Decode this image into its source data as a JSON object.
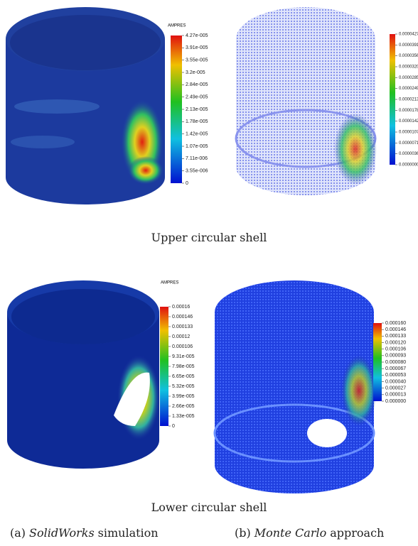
{
  "panels": [
    {
      "title": "AMPRES",
      "ticks": [
        "4.27e-005",
        "3.91e-005",
        "3.55e-005",
        "3.2e-005",
        "2.84e-005",
        "2.49e-005",
        "2.13e-005",
        "1.78e-005",
        "1.42e-005",
        "1.07e-005",
        "7.11e-006",
        "3.55e-006",
        "0"
      ]
    },
    {
      "ticks": [
        "0.0000427",
        "0.0000391",
        "0.0000356",
        "0.0000320",
        "0.0000285",
        "0.0000249",
        "0.0000213",
        "0.0000178",
        "0.0000142",
        "0.0000107",
        "0.0000071",
        "0.0000036",
        "0.0000000"
      ]
    },
    {
      "title": "AMPRES",
      "ticks": [
        "0.00016",
        "0.000146",
        "0.000133",
        "0.00012",
        "0.000106",
        "9.31e-005",
        "7.98e-005",
        "6.65e-005",
        "5.32e-005",
        "3.99e-005",
        "2.66e-005",
        "1.33e-005",
        "0"
      ]
    },
    {
      "ticks": [
        "0.000160",
        "0.000146",
        "0.000133",
        "0.000120",
        "0.000106",
        "0.000093",
        "0.000080",
        "0.000067",
        "0.000053",
        "0.000040",
        "0.000027",
        "0.000013",
        "0.000000"
      ]
    }
  ],
  "row_captions": [
    "Upper circular shell",
    "Lower circular shell"
  ],
  "column_captions": [
    {
      "label": "(a)",
      "method": "SolidWorks",
      "rest": "simulation"
    },
    {
      "label": "(b)",
      "method": "Monte Carlo",
      "rest": "approach"
    }
  ]
}
